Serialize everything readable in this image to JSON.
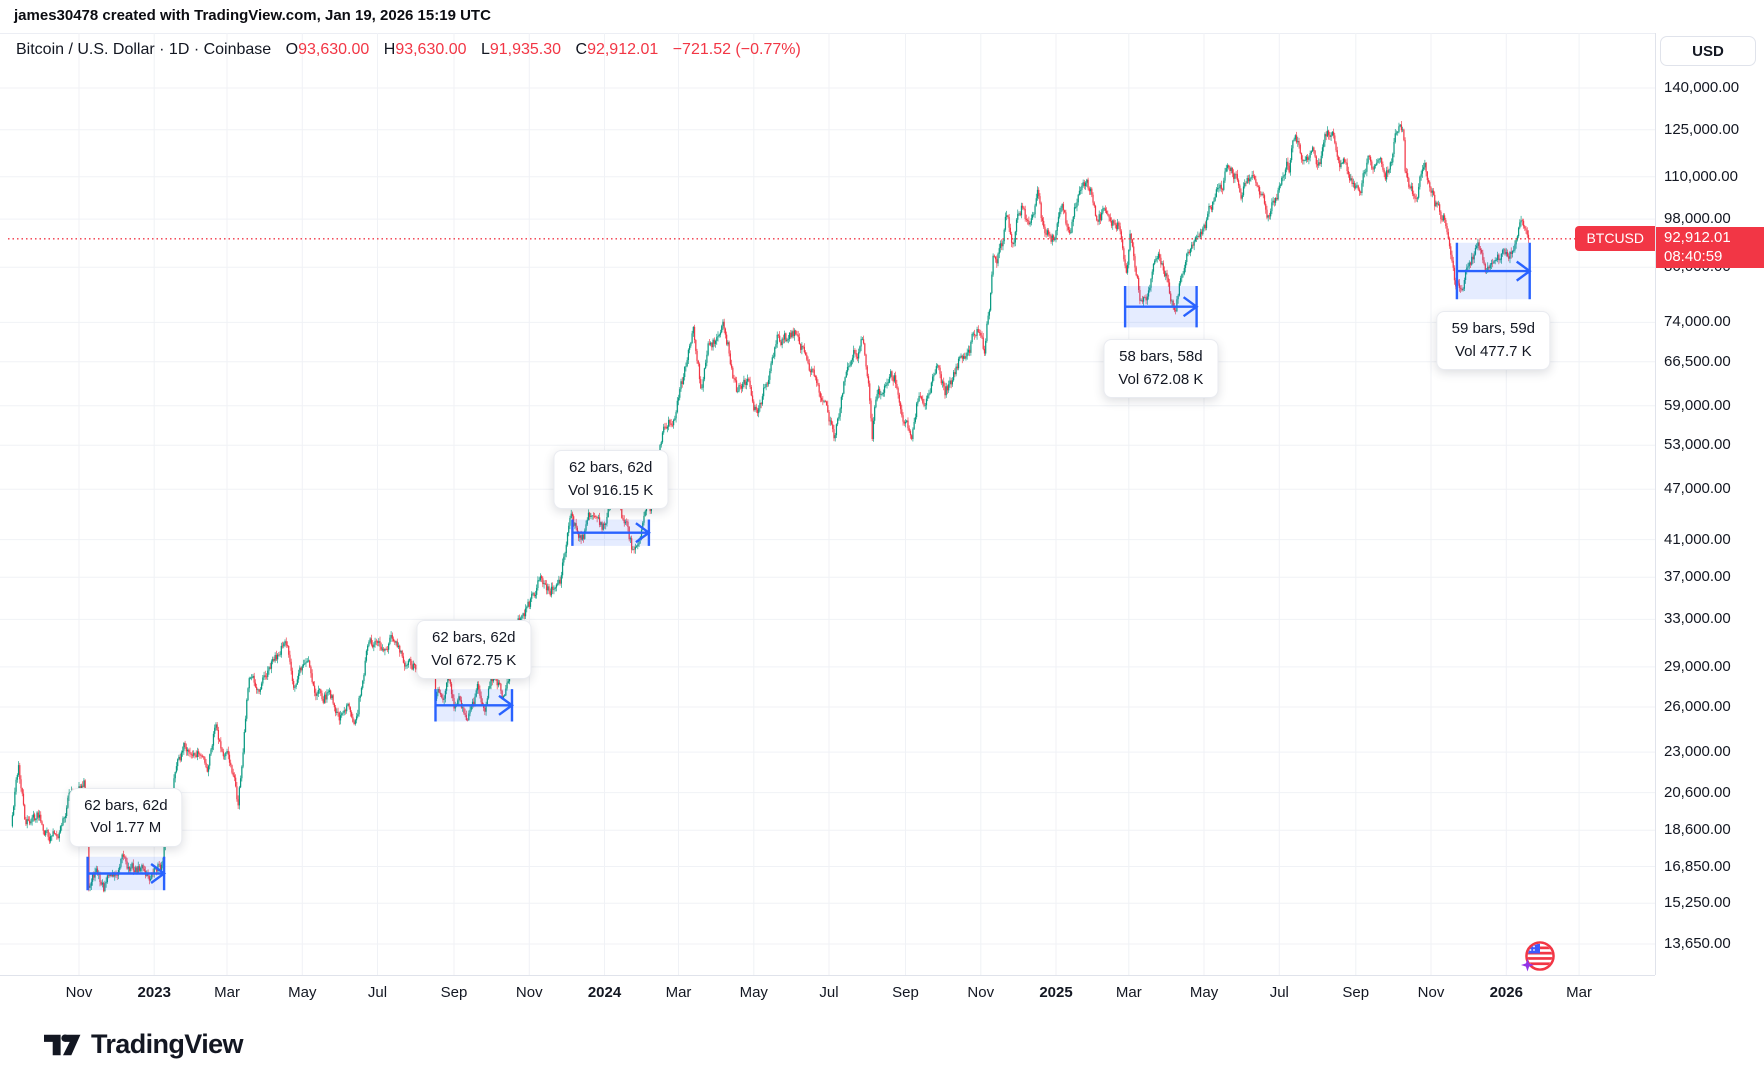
{
  "attribution": "james30478 created with TradingView.com, Jan 19, 2026 15:19 UTC",
  "symbol": {
    "name": "Bitcoin / U.S. Dollar · 1D · Coinbase",
    "o_label": "O",
    "o_value": "93,630.00",
    "h_label": "H",
    "h_value": "93,630.00",
    "l_label": "L",
    "l_value": "91,935.30",
    "c_label": "C",
    "c_value": "92,912.01",
    "change": "−721.52 (−0.77%)"
  },
  "price_axis": {
    "currency": "USD",
    "ticks": [
      "140,000.00",
      "125,000.00",
      "110,000.00",
      "98,000.00",
      "86,000.00",
      "74,000.00",
      "66,500.00",
      "59,000.00",
      "53,000.00",
      "47,000.00",
      "41,000.00",
      "37,000.00",
      "33,000.00",
      "29,000.00",
      "26,000.00",
      "23,000.00",
      "20,600.00",
      "18,600.00",
      "16,850.00",
      "15,250.00",
      "13,650.00"
    ]
  },
  "price_line": {
    "symbol": "BTCUSD",
    "price": "92,912.01",
    "countdown": "08:40:59",
    "value": 92912.01
  },
  "time_axis": {
    "ticks": [
      {
        "label": "Nov",
        "date": "2022-11-01",
        "bold": false
      },
      {
        "label": "2023",
        "date": "2023-01-01",
        "bold": true
      },
      {
        "label": "Mar",
        "date": "2023-03-01",
        "bold": false
      },
      {
        "label": "May",
        "date": "2023-05-01",
        "bold": false
      },
      {
        "label": "Jul",
        "date": "2023-07-01",
        "bold": false
      },
      {
        "label": "Sep",
        "date": "2023-09-01",
        "bold": false
      },
      {
        "label": "Nov",
        "date": "2023-11-01",
        "bold": false
      },
      {
        "label": "2024",
        "date": "2024-01-01",
        "bold": true
      },
      {
        "label": "Mar",
        "date": "2024-03-01",
        "bold": false
      },
      {
        "label": "May",
        "date": "2024-05-01",
        "bold": false
      },
      {
        "label": "Jul",
        "date": "2024-07-01",
        "bold": false
      },
      {
        "label": "Sep",
        "date": "2024-09-01",
        "bold": false
      },
      {
        "label": "Nov",
        "date": "2024-11-01",
        "bold": false
      },
      {
        "label": "2025",
        "date": "2025-01-01",
        "bold": true
      },
      {
        "label": "Mar",
        "date": "2025-03-01",
        "bold": false
      },
      {
        "label": "May",
        "date": "2025-05-01",
        "bold": false
      },
      {
        "label": "Jul",
        "date": "2025-07-01",
        "bold": false
      },
      {
        "label": "Sep",
        "date": "2025-09-01",
        "bold": false
      },
      {
        "label": "Nov",
        "date": "2025-11-01",
        "bold": false
      },
      {
        "label": "2026",
        "date": "2026-01-01",
        "bold": true
      },
      {
        "label": "Mar",
        "date": "2026-03-01",
        "bold": false
      }
    ]
  },
  "logo": {
    "text": "TradingView"
  },
  "colors": {
    "up": "#089981",
    "down": "#f23645",
    "measure": "#2962ff",
    "price": "#f23645",
    "grid": "#f0f2f6",
    "text": "#131722"
  },
  "chart_data": {
    "type": "candlestick",
    "title": "Bitcoin / U.S. Dollar",
    "interval": "1D",
    "exchange": "Coinbase",
    "scale": "log",
    "last": {
      "open": 93630.0,
      "high": 93630.0,
      "low": 91935.3,
      "close": 92912.01,
      "change": -721.52,
      "change_pct": -0.77
    },
    "ylim": [
      13650,
      140000
    ],
    "x_range": [
      "2022-09-07",
      "2026-01-19"
    ],
    "anchors": [
      [
        "2022-09-07",
        18800
      ],
      [
        "2022-09-13",
        22200
      ],
      [
        "2022-09-19",
        18900
      ],
      [
        "2022-09-30",
        19400
      ],
      [
        "2022-10-13",
        18400
      ],
      [
        "2022-10-26",
        20700
      ],
      [
        "2022-11-05",
        21300
      ],
      [
        "2022-11-08",
        18500
      ],
      [
        "2022-11-09",
        15900
      ],
      [
        "2022-11-14",
        16600
      ],
      [
        "2022-11-21",
        15760
      ],
      [
        "2022-12-05",
        17200
      ],
      [
        "2022-12-16",
        16600
      ],
      [
        "2022-12-30",
        16550
      ],
      [
        "2023-01-08",
        17100
      ],
      [
        "2023-01-14",
        19900
      ],
      [
        "2023-01-21",
        22700
      ],
      [
        "2023-01-29",
        23000
      ],
      [
        "2023-02-06",
        22900
      ],
      [
        "2023-02-13",
        21800
      ],
      [
        "2023-02-20",
        24800
      ],
      [
        "2023-03-03",
        22350
      ],
      [
        "2023-03-10",
        19900
      ],
      [
        "2023-03-17",
        26500
      ],
      [
        "2023-03-22",
        28300
      ],
      [
        "2023-03-27",
        27100
      ],
      [
        "2023-04-10",
        29600
      ],
      [
        "2023-04-14",
        30700
      ],
      [
        "2023-04-24",
        27400
      ],
      [
        "2023-05-06",
        29500
      ],
      [
        "2023-05-12",
        26800
      ],
      [
        "2023-05-23",
        27200
      ],
      [
        "2023-06-05",
        25700
      ],
      [
        "2023-06-15",
        25500
      ],
      [
        "2023-06-23",
        30700
      ],
      [
        "2023-07-06",
        30300
      ],
      [
        "2023-07-13",
        31300
      ],
      [
        "2023-07-24",
        29100
      ],
      [
        "2023-08-08",
        29700
      ],
      [
        "2023-08-16",
        28700
      ],
      [
        "2023-08-17",
        26600
      ],
      [
        "2023-08-29",
        27700
      ],
      [
        "2023-09-01",
        25900
      ],
      [
        "2023-09-11",
        25100
      ],
      [
        "2023-09-19",
        27200
      ],
      [
        "2023-09-27",
        26200
      ],
      [
        "2023-10-02",
        27900
      ],
      [
        "2023-10-11",
        26800
      ],
      [
        "2023-10-16",
        28500
      ],
      [
        "2023-10-23",
        33100
      ],
      [
        "2023-11-02",
        34900
      ],
      [
        "2023-11-09",
        36700
      ],
      [
        "2023-11-16",
        36100
      ],
      [
        "2023-11-27",
        37200
      ],
      [
        "2023-12-05",
        44000
      ],
      [
        "2023-12-11",
        41200
      ],
      [
        "2023-12-20",
        43600
      ],
      [
        "2023-12-30",
        42100
      ],
      [
        "2024-01-08",
        46900
      ],
      [
        "2024-01-11",
        46300
      ],
      [
        "2024-01-23",
        39900
      ],
      [
        "2024-02-07",
        44300
      ],
      [
        "2024-02-14",
        51800
      ],
      [
        "2024-02-27",
        57000
      ],
      [
        "2024-03-05",
        63800
      ],
      [
        "2024-03-13",
        73100
      ],
      [
        "2024-03-19",
        61900
      ],
      [
        "2024-03-25",
        69900
      ],
      [
        "2024-04-08",
        71600
      ],
      [
        "2024-04-17",
        61300
      ],
      [
        "2024-04-26",
        63500
      ],
      [
        "2024-05-01",
        58300
      ],
      [
        "2024-05-15",
        66200
      ],
      [
        "2024-05-21",
        71400
      ],
      [
        "2024-06-06",
        71100
      ],
      [
        "2024-06-18",
        65100
      ],
      [
        "2024-06-24",
        60300
      ],
      [
        "2024-07-05",
        54000
      ],
      [
        "2024-07-15",
        64700
      ],
      [
        "2024-07-22",
        68100
      ],
      [
        "2024-07-29",
        69900
      ],
      [
        "2024-08-02",
        62700
      ],
      [
        "2024-08-05",
        53900
      ],
      [
        "2024-08-09",
        60900
      ],
      [
        "2024-08-23",
        64100
      ],
      [
        "2024-08-27",
        59500
      ],
      [
        "2024-09-06",
        53900
      ],
      [
        "2024-09-13",
        60500
      ],
      [
        "2024-09-24",
        64200
      ],
      [
        "2024-09-27",
        65800
      ],
      [
        "2024-10-03",
        60700
      ],
      [
        "2024-10-16",
        67600
      ],
      [
        "2024-10-29",
        72700
      ],
      [
        "2024-11-04",
        68000
      ],
      [
        "2024-11-11",
        88700
      ],
      [
        "2024-11-19",
        92300
      ],
      [
        "2024-11-22",
        99000
      ],
      [
        "2024-11-26",
        91900
      ],
      [
        "2024-12-05",
        101100
      ],
      [
        "2024-12-10",
        96600
      ],
      [
        "2024-12-17",
        106100
      ],
      [
        "2024-12-23",
        94300
      ],
      [
        "2024-12-30",
        92600
      ],
      [
        "2025-01-06",
        102100
      ],
      [
        "2025-01-13",
        94500
      ],
      [
        "2025-01-21",
        106100
      ],
      [
        "2025-01-30",
        104700
      ],
      [
        "2025-02-03",
        97700
      ],
      [
        "2025-02-14",
        97500
      ],
      [
        "2025-02-21",
        96100
      ],
      [
        "2025-02-27",
        84700
      ],
      [
        "2025-03-02",
        94200
      ],
      [
        "2025-03-10",
        78500
      ],
      [
        "2025-03-24",
        88000
      ],
      [
        "2025-04-02",
        82500
      ],
      [
        "2025-04-08",
        76300
      ],
      [
        "2025-04-14",
        84500
      ],
      [
        "2025-04-22",
        91200
      ],
      [
        "2025-05-01",
        96500
      ],
      [
        "2025-05-10",
        104100
      ],
      [
        "2025-05-22",
        111700
      ],
      [
        "2025-06-01",
        104600
      ],
      [
        "2025-06-10",
        110300
      ],
      [
        "2025-06-22",
        99000
      ],
      [
        "2025-07-03",
        109600
      ],
      [
        "2025-07-09",
        111300
      ],
      [
        "2025-07-14",
        123100
      ],
      [
        "2025-07-25",
        115800
      ],
      [
        "2025-08-01",
        113400
      ],
      [
        "2025-08-13",
        124300
      ],
      [
        "2025-08-19",
        112900
      ],
      [
        "2025-09-01",
        107300
      ],
      [
        "2025-09-12",
        116100
      ],
      [
        "2025-09-25",
        109200
      ],
      [
        "2025-10-01",
        117000
      ],
      [
        "2025-10-06",
        126200
      ],
      [
        "2025-10-10",
        121500
      ],
      [
        "2025-10-11",
        111600
      ],
      [
        "2025-10-17",
        104900
      ],
      [
        "2025-10-27",
        114200
      ],
      [
        "2025-11-04",
        101500
      ],
      [
        "2025-11-14",
        94600
      ],
      [
        "2025-11-21",
        81600
      ],
      [
        "2025-12-01",
        86200
      ],
      [
        "2025-12-09",
        92000
      ],
      [
        "2025-12-15",
        84900
      ],
      [
        "2025-12-24",
        87700
      ],
      [
        "2026-01-02",
        88600
      ],
      [
        "2026-01-08",
        91500
      ],
      [
        "2026-01-14",
        97600
      ],
      [
        "2026-01-19",
        92912
      ]
    ],
    "measurements": [
      {
        "bars": "62 bars, 62d",
        "vol": "Vol 1.77 M",
        "from": "2022-11-08",
        "to": "2023-01-09",
        "price_top": 17300,
        "price_bottom": 15800,
        "tooltip": "above"
      },
      {
        "bars": "62 bars, 62d",
        "vol": "Vol 672.75 K",
        "from": "2023-08-17",
        "to": "2023-10-18",
        "price_top": 27300,
        "price_bottom": 25000,
        "tooltip": "above"
      },
      {
        "bars": "62 bars, 62d",
        "vol": "Vol 916.15 K",
        "from": "2023-12-06",
        "to": "2024-02-06",
        "price_top": 43300,
        "price_bottom": 40300,
        "tooltip": "above"
      },
      {
        "bars": "58 bars, 58d",
        "vol": "Vol 672.08 K",
        "from": "2025-02-26",
        "to": "2025-04-25",
        "price_top": 81700,
        "price_bottom": 73000,
        "tooltip": "below"
      },
      {
        "bars": "59 bars, 59d",
        "vol": "Vol 477.7 K",
        "from": "2025-11-22",
        "to": "2026-01-20",
        "price_top": 91900,
        "price_bottom": 78800,
        "tooltip": "below"
      }
    ]
  }
}
